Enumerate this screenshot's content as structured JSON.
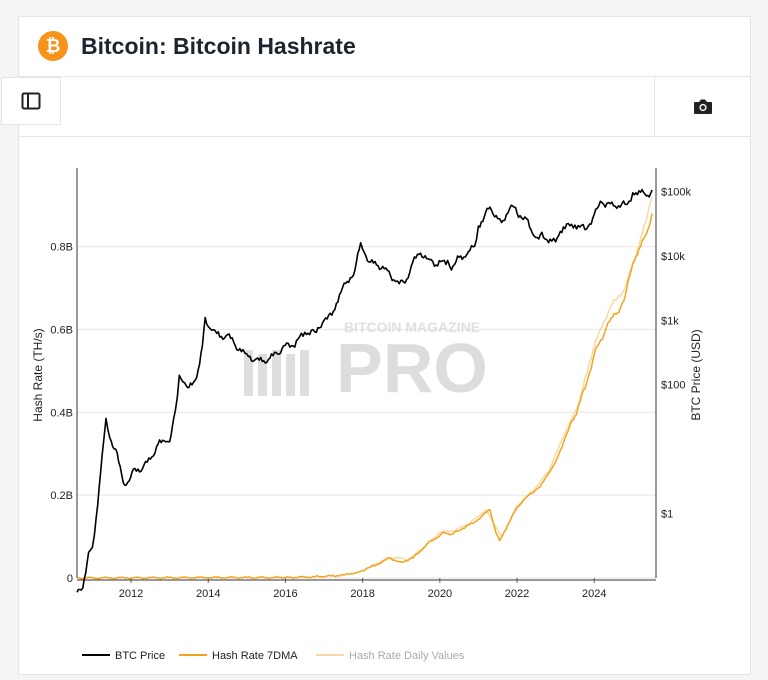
{
  "header": {
    "title": "Bitcoin: Bitcoin Hashrate",
    "logo_icon": "bitcoin-icon",
    "logo_text": "₿"
  },
  "toolbar": {
    "sidebar_toggle_icon": "sidebar-toggle-icon",
    "screenshot_icon": "camera-icon"
  },
  "watermark": {
    "top_text": "BITCOIN MAGAZINE",
    "main_text": "PRO"
  },
  "colors": {
    "accent": "#f7931a",
    "price_line": "#000000",
    "hashrate_line": "#f4a41c",
    "hashrate_daily": "#f6d9a6",
    "grid": "#e6e6e6"
  },
  "chart_data": {
    "type": "line",
    "title": "",
    "x_ticks": [
      "2012",
      "2014",
      "2016",
      "2018",
      "2020",
      "2022",
      "2024"
    ],
    "x_range": [
      2010.6,
      2025.6
    ],
    "left_axis": {
      "label": "Hash Rate (TH/s)",
      "ticks": [
        "0",
        "0.2B",
        "0.4B",
        "0.6B",
        "0.8B"
      ],
      "tick_values": [
        0,
        200000000,
        400000000,
        600000000,
        800000000
      ],
      "range": [
        0,
        980000000
      ]
    },
    "right_axis": {
      "label": "BTC Price (USD)",
      "scale": "log",
      "ticks": [
        "$1",
        "$100",
        "$1k",
        "$10k",
        "$100k"
      ],
      "tick_values": [
        1,
        100,
        1000,
        10000,
        100000
      ],
      "range": [
        0.1,
        200000
      ]
    },
    "legend": {
      "position": "bottom",
      "items": [
        "BTC Price",
        "Hash Rate 7DMA",
        "Hash Rate Daily Values"
      ]
    },
    "series": [
      {
        "name": "BTC Price",
        "axis": "right",
        "x": [
          2010.6,
          2010.75,
          2010.9,
          2011.0,
          2011.1,
          2011.25,
          2011.35,
          2011.45,
          2011.6,
          2011.8,
          2011.95,
          2012.1,
          2012.3,
          2012.5,
          2012.7,
          2012.9,
          2013.0,
          2013.15,
          2013.25,
          2013.35,
          2013.5,
          2013.7,
          2013.85,
          2013.92,
          2014.0,
          2014.1,
          2014.3,
          2014.5,
          2014.7,
          2014.9,
          2015.0,
          2015.2,
          2015.4,
          2015.6,
          2015.8,
          2015.95,
          2016.2,
          2016.5,
          2016.8,
          2017.0,
          2017.2,
          2017.4,
          2017.6,
          2017.8,
          2017.95,
          2018.05,
          2018.2,
          2018.4,
          2018.6,
          2018.85,
          2018.95,
          2019.1,
          2019.3,
          2019.5,
          2019.7,
          2019.9,
          2020.2,
          2020.3,
          2020.5,
          2020.7,
          2020.9,
          2021.0,
          2021.15,
          2021.3,
          2021.5,
          2021.6,
          2021.85,
          2022.0,
          2022.2,
          2022.45,
          2022.6,
          2022.9,
          2023.0,
          2023.2,
          2023.5,
          2023.8,
          2024.0,
          2024.2,
          2024.5,
          2024.8,
          2024.9,
          2025.0,
          2025.2,
          2025.35,
          2025.5
        ],
        "values": [
          0.06,
          0.07,
          0.25,
          0.3,
          0.9,
          8,
          30,
          15,
          10,
          3,
          3.2,
          5,
          5,
          7,
          12,
          13,
          13,
          40,
          140,
          110,
          90,
          130,
          400,
          1100,
          800,
          700,
          550,
          600,
          400,
          350,
          300,
          240,
          230,
          260,
          300,
          400,
          400,
          650,
          650,
          1000,
          1200,
          2500,
          4000,
          6000,
          16000,
          11000,
          8000,
          7000,
          6500,
          4000,
          3700,
          3800,
          8000,
          11000,
          9000,
          7200,
          8500,
          6000,
          9500,
          10500,
          14000,
          29000,
          40000,
          57000,
          38000,
          33000,
          61000,
          46000,
          40000,
          20000,
          21000,
          17000,
          16500,
          28000,
          30000,
          26000,
          44000,
          67000,
          60000,
          63000,
          70000,
          95000,
          97000,
          85000,
          105000
        ]
      },
      {
        "name": "Hash Rate 7DMA",
        "axis": "left",
        "x": [
          2010.6,
          2014.0,
          2016.0,
          2017.0,
          2017.5,
          2017.9,
          2018.2,
          2018.5,
          2018.7,
          2018.85,
          2019.0,
          2019.3,
          2019.5,
          2019.7,
          2019.9,
          2020.1,
          2020.3,
          2020.6,
          2020.9,
          2021.1,
          2021.3,
          2021.45,
          2021.55,
          2021.8,
          2022.0,
          2022.3,
          2022.6,
          2022.8,
          2023.0,
          2023.3,
          2023.5,
          2023.8,
          2024.0,
          2024.3,
          2024.4,
          2024.6,
          2024.8,
          2025.0,
          2025.2,
          2025.35,
          2025.5
        ],
        "values": [
          0,
          1000000,
          1000000,
          3500000,
          7000000,
          15000000,
          26000000,
          38000000,
          48000000,
          42000000,
          38000000,
          48000000,
          65000000,
          85000000,
          95000000,
          110000000,
          105000000,
          120000000,
          135000000,
          150000000,
          165000000,
          110000000,
          90000000,
          135000000,
          170000000,
          200000000,
          220000000,
          250000000,
          280000000,
          350000000,
          390000000,
          470000000,
          540000000,
          600000000,
          620000000,
          640000000,
          680000000,
          760000000,
          800000000,
          830000000,
          880000000
        ]
      },
      {
        "name": "Hash Rate Daily Values",
        "axis": "left",
        "x": [
          2018.2,
          2018.7,
          2019.2,
          2019.6,
          2020.0,
          2020.4,
          2020.8,
          2021.2,
          2021.6,
          2022.0,
          2022.4,
          2022.8,
          2023.2,
          2023.6,
          2024.0,
          2024.4,
          2024.8,
          2025.2,
          2025.5
        ],
        "values": [
          28000000,
          50000000,
          45000000,
          75000000,
          110000000,
          115000000,
          135000000,
          165000000,
          100000000,
          175000000,
          210000000,
          255000000,
          340000000,
          420000000,
          560000000,
          650000000,
          700000000,
          820000000,
          920000000
        ]
      }
    ]
  }
}
